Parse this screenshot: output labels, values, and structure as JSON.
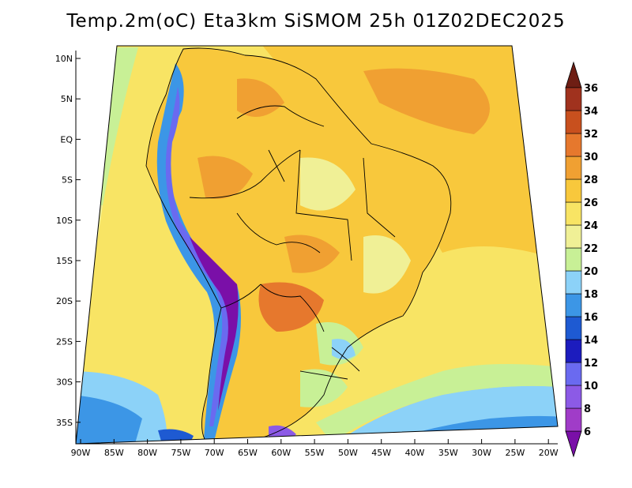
{
  "title": "Temp.2m(oC) Eta3km SiSMOM 25h 01Z02DEC2025",
  "lat_ticks": [
    "10N",
    "5N",
    "EQ",
    "5S",
    "10S",
    "15S",
    "20S",
    "25S",
    "30S",
    "35S"
  ],
  "lon_ticks": [
    "90W",
    "85W",
    "80W",
    "75W",
    "70W",
    "65W",
    "60W",
    "55W",
    "50W",
    "45W",
    "40W",
    "35W",
    "30W",
    "25W",
    "20W"
  ],
  "colorbar": {
    "labels": [
      "6",
      "8",
      "10",
      "12",
      "14",
      "16",
      "18",
      "20",
      "22",
      "24",
      "26",
      "28",
      "30",
      "32",
      "34",
      "36"
    ],
    "colors": [
      "#7a0fa8",
      "#a03cc8",
      "#8c5ae6",
      "#6a6af0",
      "#1c1cbe",
      "#1e5ad2",
      "#3c96e6",
      "#8cd2f8",
      "#c8f096",
      "#f0f096",
      "#f8e464",
      "#f8c83c",
      "#f0a032",
      "#e6782d",
      "#c8501e",
      "#a0321e",
      "#6e1e14"
    ]
  },
  "icons": {
    "colorbar_max": "triangle-up",
    "colorbar_min": "triangle-down"
  }
}
